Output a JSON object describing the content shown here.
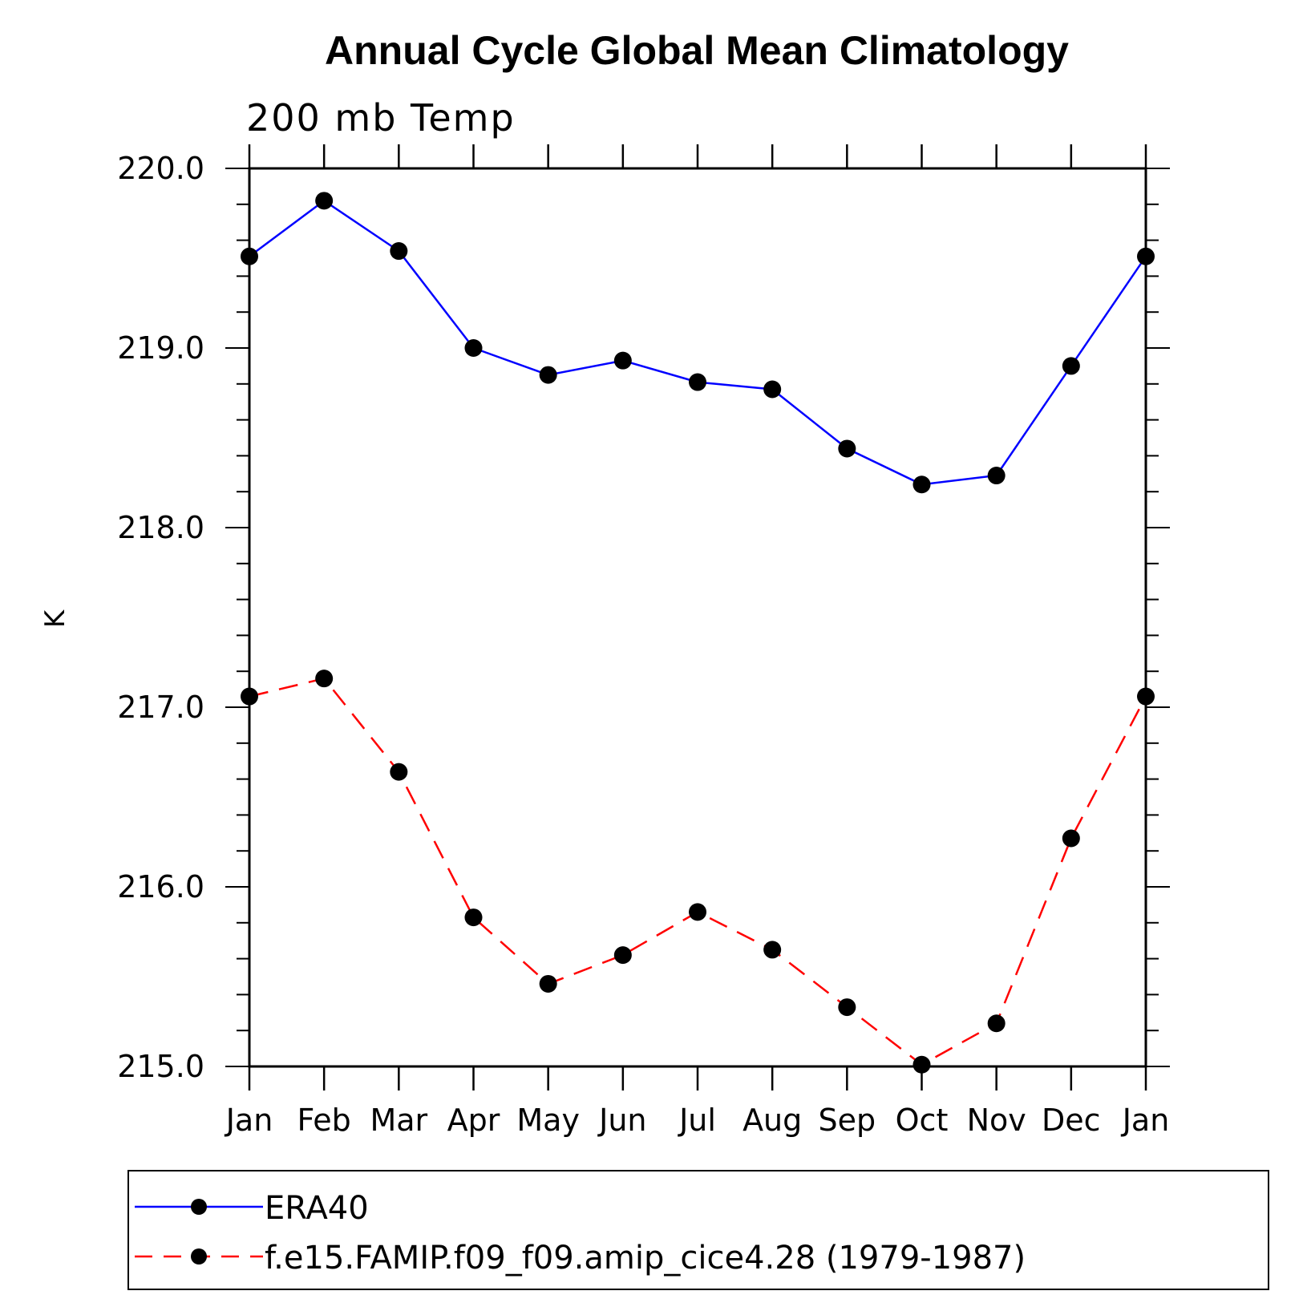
{
  "chart_data": {
    "type": "line",
    "title": "Annual Cycle Global Mean Climatology",
    "subtitle": "200 mb Temp",
    "xlabel": "",
    "ylabel": "K",
    "categories": [
      "Jan",
      "Feb",
      "Mar",
      "Apr",
      "May",
      "Jun",
      "Jul",
      "Aug",
      "Sep",
      "Oct",
      "Nov",
      "Dec",
      "Jan"
    ],
    "ylim": [
      215.0,
      220.0
    ],
    "yticks": [
      "215.0",
      "216.0",
      "217.0",
      "218.0",
      "219.0",
      "220.0"
    ],
    "grid": false,
    "legend_position": "bottom",
    "series": [
      {
        "name": "ERA40",
        "color": "#0000ff",
        "line_style": "solid",
        "marker": "circle",
        "values": [
          219.51,
          219.82,
          219.54,
          219.0,
          218.85,
          218.93,
          218.81,
          218.77,
          218.44,
          218.24,
          218.29,
          218.9,
          219.51
        ]
      },
      {
        "name": "f.e15.FAMIP.f09_f09.amip_cice4.28 (1979-1987)",
        "color": "#ff0000",
        "line_style": "dashed",
        "marker": "circle",
        "values": [
          217.06,
          217.16,
          216.64,
          215.83,
          215.46,
          215.62,
          215.86,
          215.65,
          215.33,
          215.01,
          215.24,
          216.27,
          217.06
        ]
      }
    ]
  }
}
